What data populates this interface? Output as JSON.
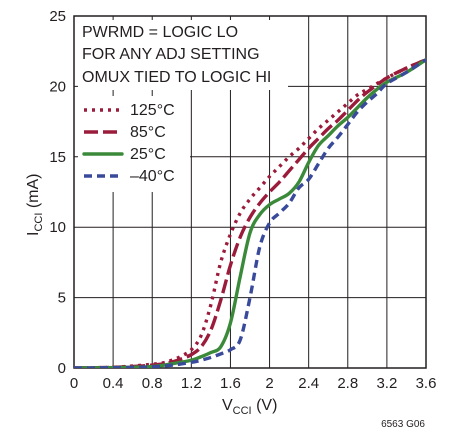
{
  "chart_data": {
    "type": "line",
    "xlabel": {
      "main": "V",
      "sub": "CCI",
      "unit": " (V)"
    },
    "ylabel": {
      "main": "I",
      "sub": "CCI",
      "unit": " (mA)"
    },
    "xlim": [
      0,
      3.6
    ],
    "ylim": [
      0,
      25
    ],
    "x_ticks": [
      0,
      0.4,
      0.8,
      1.2,
      1.6,
      2,
      2.4,
      2.8,
      3.2,
      3.6
    ],
    "x_tick_labels": [
      "0",
      "0.4",
      "0.8",
      "1.2",
      "1.6",
      "2",
      "2.4",
      "2.8",
      "3.2",
      "3.6"
    ],
    "y_ticks": [
      0,
      5,
      10,
      15,
      20,
      25
    ],
    "y_tick_labels": [
      "0",
      "5",
      "10",
      "15",
      "20",
      "25"
    ],
    "grid": true,
    "annotation_lines": [
      "PWRMD = LOGIC LO",
      "FOR ANY ADJ SETTING",
      "OMUX TIED TO LOGIC HI"
    ],
    "figure_id": "6563 G06",
    "legend_placement": "upper-left",
    "series": [
      {
        "name": "125°C",
        "color": "#9b1b3b",
        "dash": "dot",
        "x": [
          0,
          0.4,
          0.7,
          0.9,
          1.0,
          1.1,
          1.2,
          1.3,
          1.4,
          1.5,
          1.6,
          1.7,
          1.8,
          1.9,
          2.0,
          2.1,
          2.2,
          2.3,
          2.4,
          2.5,
          2.6,
          2.7,
          2.8,
          2.9,
          3.0,
          3.2,
          3.4,
          3.6
        ],
        "y": [
          0,
          0.05,
          0.2,
          0.35,
          0.55,
          0.85,
          1.3,
          2.3,
          4.5,
          7.5,
          9.5,
          11.0,
          12.0,
          12.8,
          13.6,
          14.3,
          15.0,
          15.6,
          16.3,
          17.0,
          17.6,
          18.2,
          18.8,
          19.4,
          19.8,
          20.6,
          21.3,
          21.9
        ]
      },
      {
        "name": "85°C",
        "color": "#9b1b3b",
        "dash": "long",
        "x": [
          0,
          0.4,
          0.7,
          0.9,
          1.0,
          1.1,
          1.2,
          1.3,
          1.4,
          1.5,
          1.6,
          1.7,
          1.8,
          1.9,
          2.0,
          2.1,
          2.2,
          2.3,
          2.4,
          2.5,
          2.6,
          2.7,
          2.8,
          2.9,
          3.0,
          3.2,
          3.4,
          3.6
        ],
        "y": [
          0,
          0.05,
          0.15,
          0.28,
          0.42,
          0.65,
          0.95,
          1.5,
          2.7,
          4.8,
          7.3,
          9.3,
          10.7,
          11.7,
          12.5,
          13.2,
          14.0,
          14.8,
          15.6,
          16.3,
          17.0,
          17.6,
          18.3,
          19.0,
          19.6,
          20.6,
          21.3,
          21.9
        ]
      },
      {
        "name": "25°C",
        "color": "#3a8a3a",
        "dash": "solid",
        "x": [
          0,
          0.4,
          0.8,
          1.0,
          1.2,
          1.3,
          1.4,
          1.5,
          1.6,
          1.7,
          1.8,
          1.9,
          2.0,
          2.1,
          2.2,
          2.3,
          2.4,
          2.5,
          2.6,
          2.7,
          2.8,
          2.9,
          3.0,
          3.1,
          3.2,
          3.4,
          3.6
        ],
        "y": [
          0,
          0.03,
          0.1,
          0.3,
          0.55,
          0.8,
          1.1,
          1.5,
          3.2,
          6.5,
          9.6,
          10.9,
          11.6,
          12.0,
          12.4,
          13.2,
          14.6,
          15.8,
          16.5,
          17.2,
          17.8,
          18.5,
          19.2,
          19.8,
          20.3,
          21.0,
          21.9
        ]
      },
      {
        "name": "–40°C",
        "color": "#3a4a9b",
        "dash": "dash",
        "x": [
          0,
          0.4,
          0.8,
          1.0,
          1.2,
          1.3,
          1.4,
          1.5,
          1.6,
          1.7,
          1.8,
          1.9,
          2.0,
          2.1,
          2.2,
          2.3,
          2.4,
          2.5,
          2.6,
          2.7,
          2.8,
          2.9,
          3.0,
          3.1,
          3.2,
          3.4,
          3.6
        ],
        "y": [
          0,
          0.02,
          0.08,
          0.2,
          0.4,
          0.55,
          0.75,
          1.0,
          1.3,
          2.0,
          5.0,
          8.6,
          10.3,
          11.0,
          11.7,
          12.8,
          13.4,
          14.5,
          15.6,
          16.4,
          17.3,
          18.2,
          18.9,
          19.5,
          20.2,
          21.0,
          21.9
        ]
      }
    ]
  }
}
